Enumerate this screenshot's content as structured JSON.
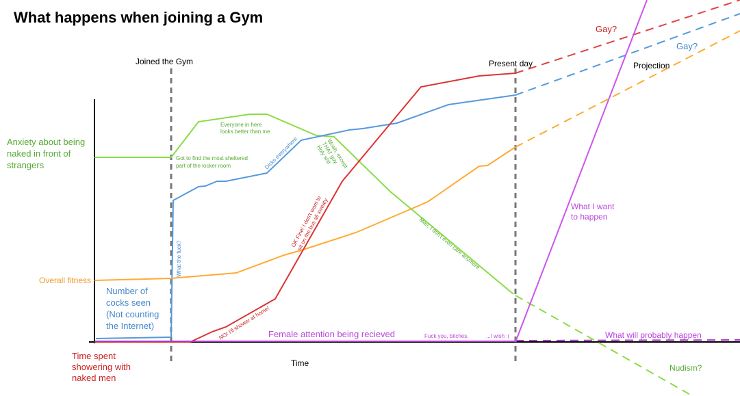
{
  "title": "What happens when joining a Gym",
  "markers": {
    "joined": "Joined the Gym",
    "present": "Present day",
    "projection": "Projection",
    "time": "Time"
  },
  "labels": {
    "anxiety": [
      "Anxiety about being",
      "naked in front of",
      "strangers"
    ],
    "fitness": "Overall fitness",
    "cocks": [
      "Number of",
      "cocks seen",
      "(Not counting",
      "the Internet)"
    ],
    "shower": [
      "Time spent",
      "showering with",
      "naked men"
    ],
    "female": "Female attention being recieved"
  },
  "annotations": {
    "sheltered": [
      "Got to find the most sheltered",
      "part of the locker room"
    ],
    "better": [
      "Everyone in here",
      "looks better than me"
    ],
    "dicks": "Dicks everywhere",
    "woah": [
      "Woah, except",
      "THAT guy.",
      "Holy shit"
    ],
    "care": "Man, I don't even care anymore",
    "wtf": "What the fuck?",
    "okfine": [
      "OK Fine! I don't want to",
      "sit on the bus all sweaty"
    ],
    "no": "NO! I'll shower at home!",
    "bitches": "Fuck you, bitches.",
    "wish": "...I wish :(",
    "want": [
      "What I want",
      "to happen"
    ],
    "probably": "What will probably happen",
    "gay_red": "Gay?",
    "gay_blue": "Gay?",
    "nudism": "Nudism?"
  }
}
